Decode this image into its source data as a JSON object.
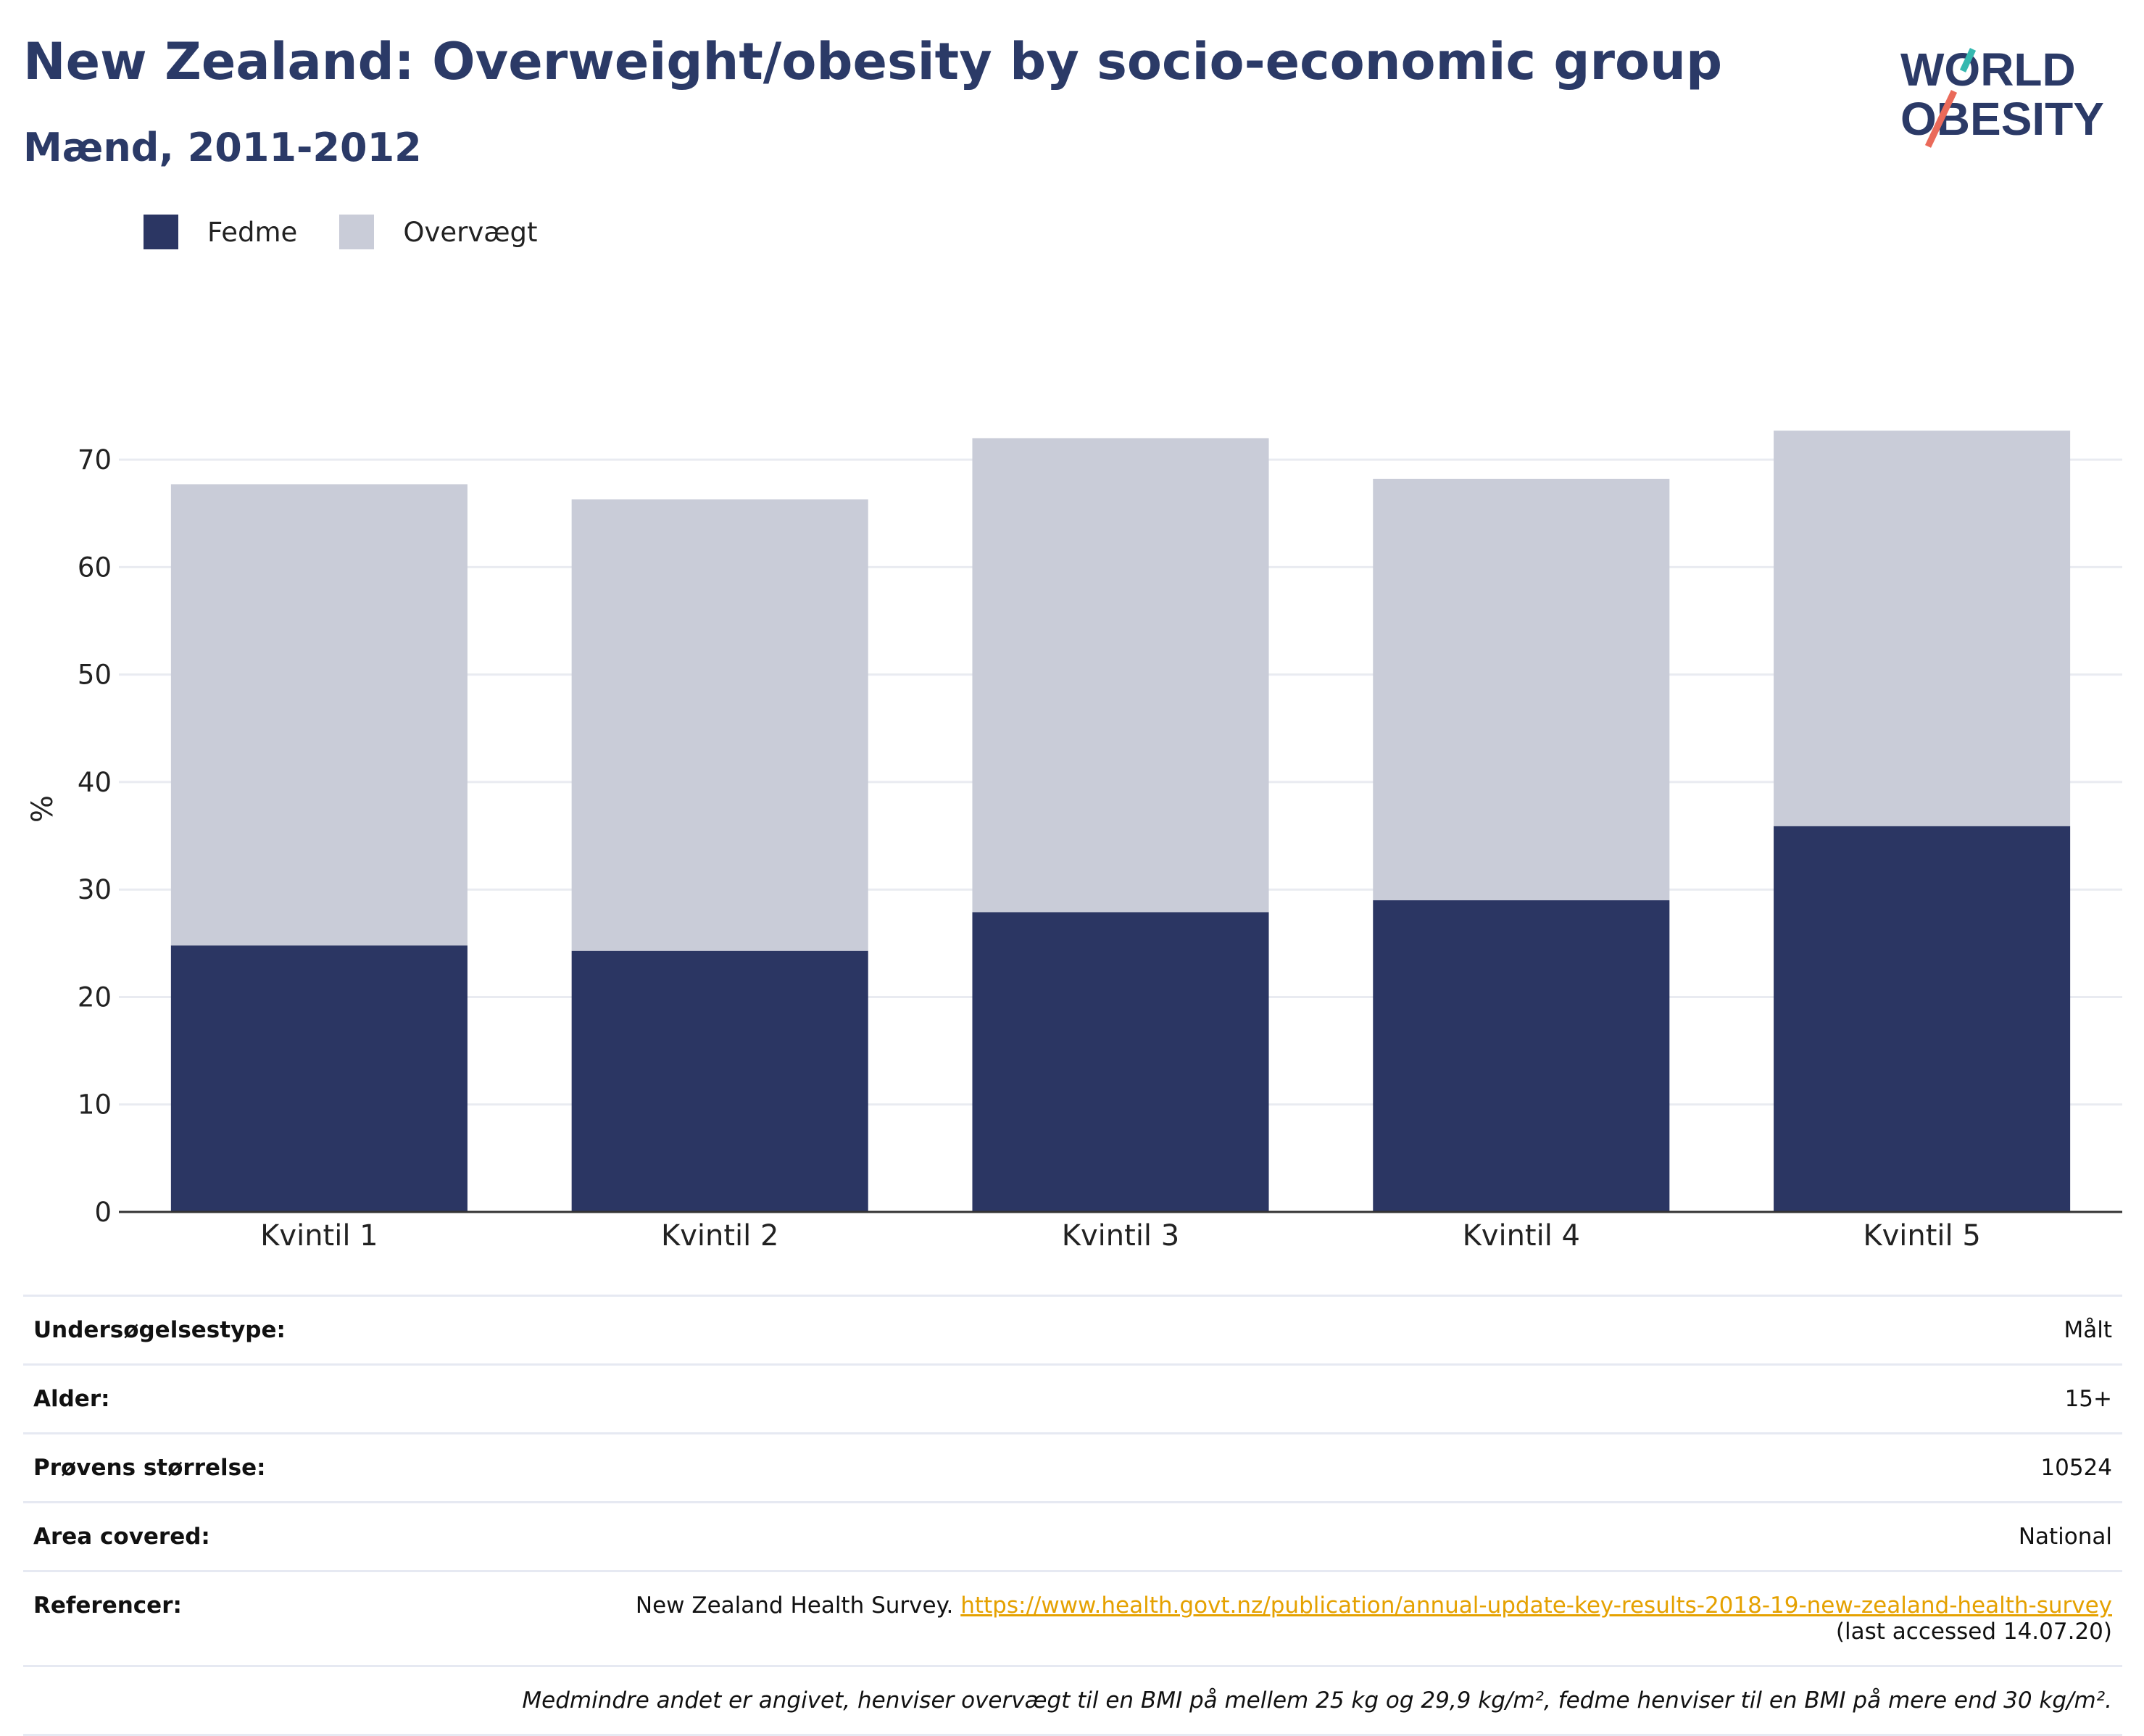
{
  "header": {
    "title": "New Zealand: Overweight/obesity by socio-economic group",
    "subtitle": "Mænd, 2011-2012"
  },
  "logo": {
    "line1": "WORLD",
    "line2": "OBESITY"
  },
  "colors": {
    "fedme": "#2b3663",
    "overvaegt": "#c9ccd8",
    "title": "#2b3a67",
    "link": "#e5a100"
  },
  "legend": [
    {
      "label": "Fedme",
      "color": "#2b3663"
    },
    {
      "label": "Overvægt",
      "color": "#c9ccd8"
    }
  ],
  "chart_data": {
    "type": "bar",
    "stacked": true,
    "categories": [
      "Kvintil 1",
      "Kvintil 2",
      "Kvintil 3",
      "Kvintil 4",
      "Kvintil 5"
    ],
    "series": [
      {
        "name": "Fedme",
        "values": [
          24.8,
          24.3,
          27.9,
          29.0,
          35.9
        ]
      },
      {
        "name": "Overvægt",
        "values": [
          42.9,
          42.0,
          44.1,
          39.2,
          36.8
        ]
      }
    ],
    "ylabel": "%",
    "ylim": [
      0,
      75
    ],
    "yticks": [
      0,
      10,
      20,
      30,
      40,
      50,
      60,
      70
    ],
    "grid": true,
    "legend_position": "top-left"
  },
  "meta": {
    "rows": [
      {
        "key": "Undersøgelsestype:",
        "value": "Målt"
      },
      {
        "key": "Alder:",
        "value": "15+"
      },
      {
        "key": "Prøvens størrelse:",
        "value": "10524"
      },
      {
        "key": "Area covered:",
        "value": "National"
      }
    ],
    "ref_key": "Referencer:",
    "ref_text": "New Zealand Health Survey.",
    "ref_link": "https://www.health.govt.nz/publication/annual-update-key-results-2018-19-new-zealand-health-survey",
    "ref_accessed": "(last accessed 14.07.20)",
    "note": "Medmindre andet er angivet, henviser overvægt til en BMI på mellem 25 kg og 29,9 kg/m², fedme henviser til en BMI på mere end 30 kg/m²."
  }
}
